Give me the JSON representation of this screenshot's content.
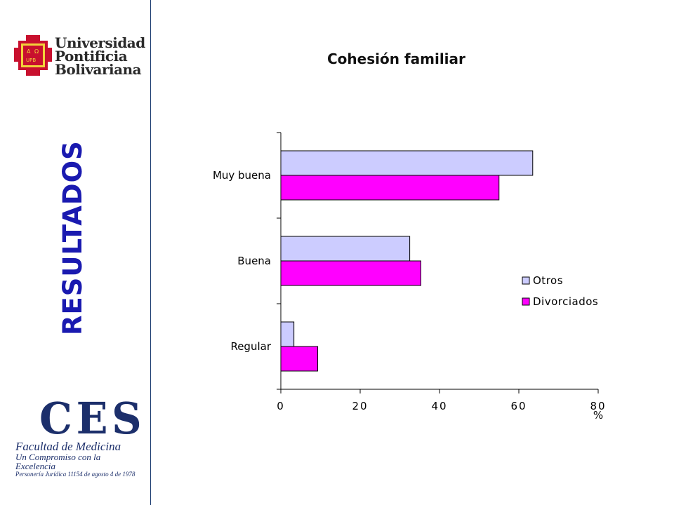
{
  "branding": {
    "university_lines": [
      "Universidad",
      "Pontificia",
      "Bolivariana"
    ],
    "seal_letters": [
      "A",
      "Ω",
      "UPB"
    ],
    "ces_name": "CES",
    "ces_faculty": "Facultad de Medicina",
    "ces_motto": "Un Compromiso con la Excelencia",
    "ces_legal": "Personería Jurídica 11154 de agosto 4 de 1978",
    "divider_color": "#1f3f73"
  },
  "side_title": "RESULTADOS",
  "chart_data": {
    "type": "bar",
    "orientation": "horizontal",
    "title": "Cohesión familiar",
    "categories": [
      "Muy buena",
      "Buena",
      "Regular"
    ],
    "series": [
      {
        "name": "Otros",
        "color": "#ccccff",
        "values": [
          63.5,
          32.5,
          3.3
        ]
      },
      {
        "name": "Divorciados",
        "color": "#ff00ff",
        "values": [
          55,
          35.3,
          9.3
        ]
      }
    ],
    "xlabel": "%",
    "ylabel": "",
    "xlim": [
      0,
      80
    ],
    "xticks": [
      0,
      20,
      40,
      60,
      80
    ],
    "grid": false,
    "legend_position": "right"
  }
}
